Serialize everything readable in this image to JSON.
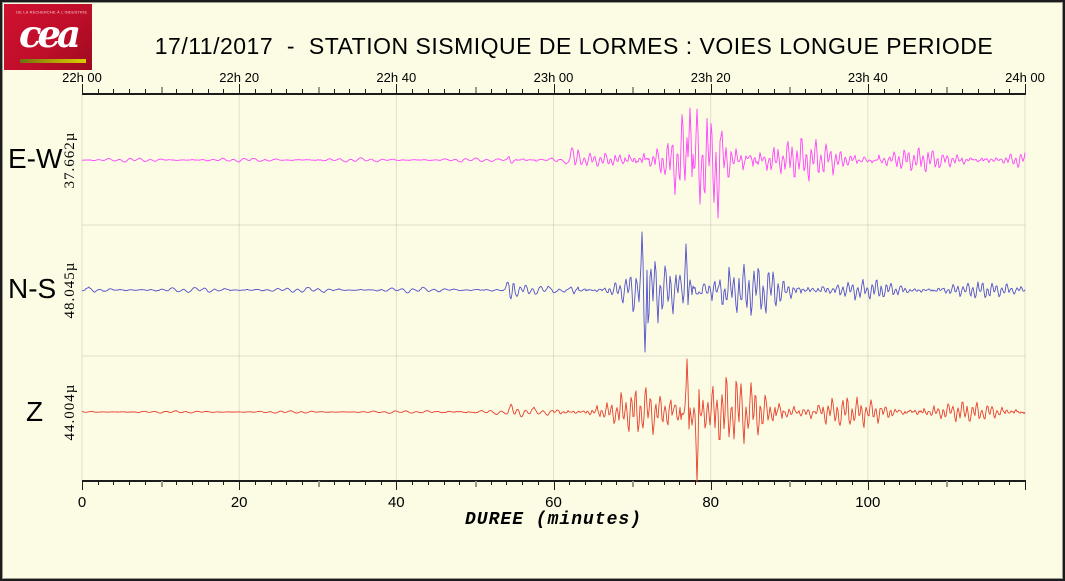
{
  "logo": {
    "tagline": "DE LA RECHERCHE À L'INDUSTRIE",
    "brand": "cea",
    "bg_color": "#C00E2A",
    "bar_colors": [
      "#6E6E14",
      "#D8CE00"
    ]
  },
  "title": "17/11/2017  -  STATION SISMIQUE DE LORMES : VOIES LONGUE PERIODE",
  "axes": {
    "top_ticks": [
      {
        "min": 0,
        "label": "22h 00"
      },
      {
        "min": 20,
        "label": "22h 20"
      },
      {
        "min": 40,
        "label": "22h 40"
      },
      {
        "min": 60,
        "label": "23h 00"
      },
      {
        "min": 80,
        "label": "23h 20"
      },
      {
        "min": 100,
        "label": "23h 40"
      },
      {
        "min": 120,
        "label": "24h 00"
      }
    ],
    "bottom_ticks": [
      {
        "min": 0,
        "label": "0"
      },
      {
        "min": 20,
        "label": "20"
      },
      {
        "min": 40,
        "label": "40"
      },
      {
        "min": 60,
        "label": "60"
      },
      {
        "min": 80,
        "label": "80"
      },
      {
        "min": 100,
        "label": "100"
      }
    ],
    "minor_step_min": 2,
    "medium_step_min": 10,
    "xlabel": "DUREE (minutes)"
  },
  "chart_data": {
    "type": "line",
    "title": "17/11/2017 - STATION SISMIQUE DE LORMES : VOIES LONGUE PERIODE",
    "xlabel": "DUREE (minutes)",
    "x_range_minutes": [
      0,
      120
    ],
    "top_axis_time_labels": [
      "22h 00",
      "22h 20",
      "22h 40",
      "23h 00",
      "23h 20",
      "23h 40",
      "24h 00"
    ],
    "bottom_axis_tick_values": [
      0,
      20,
      40,
      60,
      80,
      100
    ],
    "grid": "major-vertical-and-band-dividers",
    "event_onset_minutes": 54.5,
    "secondary_arrival_minutes": 62.5,
    "peak_minutes": 79,
    "series": [
      {
        "name": "E-W",
        "amplitude_label": "37.662µ",
        "color": "#FF44FF",
        "seed": 37662,
        "envelope": [
          [
            0,
            2.2
          ],
          [
            53.9,
            2.2
          ],
          [
            54.4,
            15
          ],
          [
            55.2,
            5
          ],
          [
            57,
            4.5
          ],
          [
            62.0,
            5
          ],
          [
            62.4,
            25
          ],
          [
            63.3,
            8
          ],
          [
            64,
            7
          ],
          [
            66,
            8
          ],
          [
            68,
            12
          ],
          [
            70,
            20
          ],
          [
            72,
            32
          ],
          [
            74,
            42
          ],
          [
            76,
            50
          ],
          [
            78,
            52
          ],
          [
            80,
            56
          ],
          [
            82,
            48
          ],
          [
            84,
            42
          ],
          [
            86,
            36
          ],
          [
            89,
            28
          ],
          [
            92,
            24
          ],
          [
            96,
            20
          ],
          [
            100,
            17
          ],
          [
            105,
            14
          ],
          [
            110,
            12
          ],
          [
            115,
            11
          ],
          [
            120,
            10
          ]
        ],
        "spikes": [
          [
            77.4,
            52,
            1
          ],
          [
            80.9,
            58,
            -1
          ]
        ]
      },
      {
        "name": "N-S",
        "amplitude_label": "48.045µ",
        "color": "#5252CC",
        "seed": 48045,
        "envelope": [
          [
            0,
            3
          ],
          [
            53.9,
            3
          ],
          [
            54.5,
            32
          ],
          [
            55.3,
            7
          ],
          [
            57,
            5
          ],
          [
            62.1,
            5
          ],
          [
            62.5,
            30
          ],
          [
            63.4,
            9
          ],
          [
            65,
            8
          ],
          [
            67,
            10
          ],
          [
            69,
            18
          ],
          [
            71,
            35
          ],
          [
            72.3,
            38
          ],
          [
            74,
            42
          ],
          [
            76,
            46
          ],
          [
            78,
            44
          ],
          [
            80,
            40
          ],
          [
            82,
            36
          ],
          [
            84,
            30
          ],
          [
            86,
            26
          ],
          [
            87.5,
            32
          ],
          [
            89,
            24
          ],
          [
            92,
            17
          ],
          [
            95,
            14
          ],
          [
            98,
            12
          ],
          [
            102,
            11
          ],
          [
            107,
            10
          ],
          [
            112,
            9.5
          ],
          [
            120,
            9
          ]
        ],
        "spikes": [
          [
            71.3,
            58,
            1
          ],
          [
            71.6,
            62,
            -1
          ],
          [
            76.8,
            46,
            1
          ]
        ]
      },
      {
        "name": "Z",
        "amplitude_label": "44.004µ",
        "color": "#E8402C",
        "seed": 44004,
        "envelope": [
          [
            0,
            1.3
          ],
          [
            43,
            1.5
          ],
          [
            45,
            3.5
          ],
          [
            54,
            3.5
          ],
          [
            54.5,
            9
          ],
          [
            55.5,
            5
          ],
          [
            58,
            5
          ],
          [
            60,
            7
          ],
          [
            62.5,
            9
          ],
          [
            64,
            10
          ],
          [
            66,
            13
          ],
          [
            68,
            17
          ],
          [
            70,
            24
          ],
          [
            72,
            32
          ],
          [
            74,
            40
          ],
          [
            76,
            52
          ],
          [
            78,
            60
          ],
          [
            79,
            58
          ],
          [
            80,
            52
          ],
          [
            82,
            46
          ],
          [
            84,
            38
          ],
          [
            86,
            30
          ],
          [
            88,
            27
          ],
          [
            90,
            24
          ],
          [
            93,
            21
          ],
          [
            96,
            18
          ],
          [
            100,
            16
          ],
          [
            104,
            14
          ],
          [
            108,
            13
          ],
          [
            114,
            11
          ],
          [
            120,
            10
          ]
        ],
        "spikes": [
          [
            77.0,
            53,
            1
          ],
          [
            78.3,
            70,
            -1
          ]
        ]
      }
    ]
  }
}
